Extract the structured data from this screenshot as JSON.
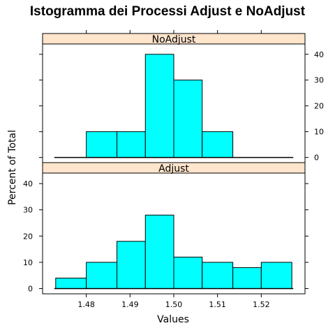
{
  "chart_data": {
    "type": "bar",
    "title": "Istogramma dei Processi Adjust e NoAdjust",
    "xlabel": "Values",
    "ylabel": "Percent of Total",
    "x_ticks": [
      1.48,
      1.49,
      1.5,
      1.51,
      1.52
    ],
    "x_tick_labels": [
      "1.48",
      "1.49",
      "1.50",
      "1.51",
      "1.52"
    ],
    "xlim": [
      1.47,
      1.53
    ],
    "y_ticks": [
      0,
      10,
      20,
      30,
      40
    ],
    "ylim": [
      -2,
      44
    ],
    "panels": [
      {
        "name": "NoAdjust",
        "bin_edges": [
          1.473,
          1.48,
          1.487,
          1.4935,
          1.5,
          1.5065,
          1.5135,
          1.52,
          1.527
        ],
        "values": [
          0,
          10,
          10,
          40,
          30,
          10,
          0,
          0
        ]
      },
      {
        "name": "Adjust",
        "bin_edges": [
          1.473,
          1.48,
          1.487,
          1.4935,
          1.5,
          1.5065,
          1.5135,
          1.52,
          1.527
        ],
        "values": [
          4,
          10,
          18,
          28,
          12,
          10,
          8,
          10
        ]
      }
    ]
  }
}
